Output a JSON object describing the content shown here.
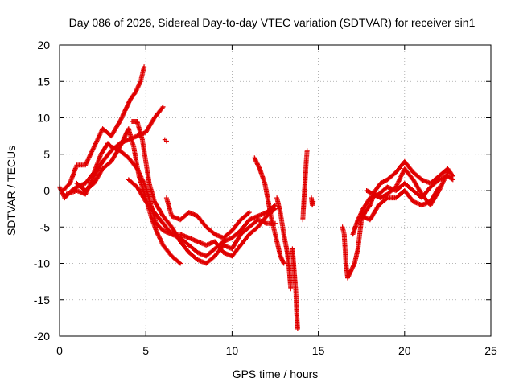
{
  "chart_data": {
    "type": "scatter",
    "title": "Day 086 of 2026, Sidereal Day-to-day VTEC variation (SDTVAR) for receiver sin1",
    "xlabel": "GPS time / hours",
    "ylabel": "SDTVAR / TECUs",
    "xlim": [
      0,
      25
    ],
    "ylim": [
      -20,
      20
    ],
    "xticks": [
      0,
      5,
      10,
      15,
      20,
      25
    ],
    "yticks": [
      -20,
      -15,
      -10,
      -5,
      0,
      5,
      10,
      15,
      20
    ],
    "grid": true,
    "marker": "plus",
    "color": "#e00000",
    "series": [
      {
        "name": "track-1",
        "points": [
          [
            0.0,
            0.5
          ],
          [
            0.3,
            -1.0
          ],
          [
            0.7,
            0.0
          ],
          [
            1.0,
            0.5
          ],
          [
            1.5,
            1.0
          ],
          [
            2.0,
            2.5
          ],
          [
            2.4,
            5.0
          ],
          [
            2.8,
            6.5
          ],
          [
            3.0,
            6.0
          ],
          [
            3.5,
            5.5
          ],
          [
            4.0,
            4.5
          ],
          [
            4.5,
            3.0
          ],
          [
            5.0,
            0.5
          ],
          [
            5.3,
            -2.0
          ],
          [
            5.6,
            -4.5
          ],
          [
            6.0,
            -5.5
          ],
          [
            6.5,
            -6.0
          ],
          [
            7.0,
            -6.5
          ],
          [
            7.5,
            -7.5
          ],
          [
            8.0,
            -8.5
          ],
          [
            8.5,
            -9.0
          ],
          [
            9.0,
            -8.0
          ],
          [
            9.5,
            -7.0
          ],
          [
            10.0,
            -6.5
          ],
          [
            10.5,
            -5.5
          ],
          [
            11.0,
            -4.0
          ],
          [
            11.5,
            -3.5
          ],
          [
            12.0,
            -3.0
          ],
          [
            12.5,
            -2.0
          ]
        ]
      },
      {
        "name": "track-2",
        "points": [
          [
            0.2,
            0.0
          ],
          [
            0.6,
            1.0
          ],
          [
            1.0,
            3.5
          ],
          [
            1.5,
            3.5
          ],
          [
            2.0,
            6.0
          ],
          [
            2.5,
            8.5
          ],
          [
            3.0,
            7.5
          ],
          [
            3.5,
            9.5
          ],
          [
            3.8,
            11.0
          ],
          [
            4.1,
            12.5
          ],
          [
            4.4,
            13.5
          ],
          [
            4.7,
            15.0
          ],
          [
            4.9,
            17.0
          ]
        ]
      },
      {
        "name": "track-3",
        "points": [
          [
            0.4,
            -0.5
          ],
          [
            1.0,
            0.0
          ],
          [
            1.5,
            -0.5
          ],
          [
            2.0,
            2.0
          ],
          [
            2.5,
            4.0
          ],
          [
            3.0,
            5.5
          ],
          [
            3.5,
            6.5
          ],
          [
            4.0,
            7.0
          ],
          [
            4.5,
            7.5
          ],
          [
            5.0,
            8.0
          ],
          [
            5.5,
            10.0
          ],
          [
            6.0,
            11.5
          ]
        ]
      },
      {
        "name": "track-4",
        "points": [
          [
            1.0,
            1.0
          ],
          [
            1.5,
            0.0
          ],
          [
            2.0,
            1.0
          ],
          [
            2.5,
            3.0
          ],
          [
            3.0,
            4.0
          ],
          [
            3.5,
            6.0
          ],
          [
            3.8,
            7.5
          ],
          [
            4.0,
            8.5
          ],
          [
            4.3,
            6.0
          ],
          [
            4.6,
            2.0
          ],
          [
            5.0,
            -1.0
          ],
          [
            5.3,
            -3.5
          ],
          [
            5.6,
            -5.5
          ],
          [
            6.0,
            -7.5
          ],
          [
            6.5,
            -9.0
          ],
          [
            7.0,
            -10.0
          ]
        ]
      },
      {
        "name": "track-5",
        "points": [
          [
            4.2,
            9.5
          ],
          [
            4.5,
            9.5
          ],
          [
            4.8,
            7.0
          ],
          [
            5.0,
            4.0
          ],
          [
            5.2,
            1.0
          ],
          [
            5.5,
            -1.5
          ],
          [
            6.0,
            -3.5
          ],
          [
            6.5,
            -5.0
          ],
          [
            7.0,
            -7.0
          ],
          [
            7.5,
            -8.5
          ],
          [
            8.0,
            -9.5
          ],
          [
            8.5,
            -10.0
          ],
          [
            9.0,
            -9.0
          ],
          [
            9.5,
            -7.5
          ],
          [
            10.0,
            -8.0
          ],
          [
            10.5,
            -6.0
          ],
          [
            11.0,
            -5.0
          ],
          [
            11.5,
            -4.0
          ],
          [
            12.0,
            -4.5
          ],
          [
            12.5,
            -4.5
          ]
        ]
      },
      {
        "name": "track-6",
        "points": [
          [
            4.0,
            1.5
          ],
          [
            4.5,
            0.5
          ],
          [
            5.0,
            -1.5
          ],
          [
            5.5,
            -3.0
          ],
          [
            6.0,
            -4.5
          ],
          [
            6.5,
            -6.0
          ],
          [
            7.0,
            -6.0
          ],
          [
            7.5,
            -6.5
          ],
          [
            8.0,
            -7.0
          ],
          [
            8.5,
            -7.5
          ],
          [
            9.0,
            -7.0
          ],
          [
            9.5,
            -8.5
          ],
          [
            10.0,
            -9.0
          ],
          [
            10.5,
            -7.5
          ],
          [
            11.0,
            -6.0
          ],
          [
            11.5,
            -5.0
          ],
          [
            12.0,
            -3.5
          ],
          [
            12.5,
            -2.5
          ]
        ]
      },
      {
        "name": "track-7",
        "points": [
          [
            6.2,
            -1.0
          ],
          [
            6.5,
            -3.5
          ],
          [
            7.0,
            -4.0
          ],
          [
            7.5,
            -3.0
          ],
          [
            8.0,
            -3.5
          ],
          [
            8.5,
            -5.0
          ],
          [
            9.0,
            -6.0
          ],
          [
            9.5,
            -6.5
          ],
          [
            10.0,
            -5.5
          ],
          [
            10.5,
            -4.0
          ],
          [
            11.0,
            -3.0
          ]
        ]
      },
      {
        "name": "track-8",
        "points": [
          [
            11.3,
            4.5
          ],
          [
            11.6,
            3.0
          ],
          [
            11.9,
            1.0
          ],
          [
            12.1,
            -1.5
          ],
          [
            12.3,
            -4.0
          ],
          [
            12.6,
            -7.0
          ],
          [
            12.8,
            -9.0
          ],
          [
            13.0,
            -10.0
          ]
        ]
      },
      {
        "name": "track-9",
        "points": [
          [
            12.6,
            -1.0
          ],
          [
            12.8,
            -3.0
          ],
          [
            13.0,
            -6.0
          ],
          [
            13.2,
            -8.5
          ],
          [
            13.3,
            -10.5
          ],
          [
            13.4,
            -13.5
          ]
        ]
      },
      {
        "name": "track-10",
        "points": [
          [
            13.5,
            -8.0
          ],
          [
            13.6,
            -11.0
          ],
          [
            13.7,
            -14.0
          ],
          [
            13.75,
            -17.0
          ],
          [
            13.8,
            -19.0
          ]
        ]
      },
      {
        "name": "track-11",
        "points": [
          [
            14.1,
            -4.0
          ],
          [
            14.15,
            -2.0
          ],
          [
            14.2,
            0.0
          ],
          [
            14.25,
            2.0
          ],
          [
            14.3,
            4.0
          ],
          [
            14.35,
            5.5
          ]
        ]
      },
      {
        "name": "track-12",
        "points": [
          [
            14.6,
            -1.0
          ],
          [
            14.65,
            -2.0
          ],
          [
            14.7,
            -1.5
          ]
        ]
      },
      {
        "name": "track-13",
        "points": [
          [
            16.4,
            -5.0
          ],
          [
            16.5,
            -6.0
          ],
          [
            16.6,
            -10.0
          ],
          [
            16.7,
            -12.0
          ],
          [
            16.9,
            -11.0
          ],
          [
            17.1,
            -10.0
          ],
          [
            17.3,
            -8.0
          ],
          [
            17.5,
            -4.0
          ],
          [
            17.7,
            -3.0
          ],
          [
            18.0,
            -2.0
          ],
          [
            18.3,
            0.0
          ],
          [
            18.6,
            1.0
          ],
          [
            19.0,
            1.5
          ],
          [
            19.5,
            2.5
          ],
          [
            20.0,
            4.0
          ],
          [
            20.5,
            2.5
          ],
          [
            21.0,
            1.5
          ],
          [
            21.5,
            1.0
          ],
          [
            22.0,
            2.0
          ],
          [
            22.5,
            3.0
          ],
          [
            22.8,
            2.0
          ]
        ]
      },
      {
        "name": "track-14",
        "points": [
          [
            17.0,
            -6.0
          ],
          [
            17.3,
            -4.0
          ],
          [
            17.6,
            -2.5
          ],
          [
            18.0,
            -1.0
          ],
          [
            18.5,
            -0.5
          ],
          [
            19.0,
            0.5
          ],
          [
            19.5,
            0.0
          ],
          [
            20.0,
            1.0
          ],
          [
            20.5,
            0.0
          ],
          [
            21.0,
            -1.0
          ],
          [
            21.5,
            0.5
          ],
          [
            22.0,
            1.5
          ],
          [
            22.5,
            2.0
          ],
          [
            22.8,
            1.5
          ]
        ]
      },
      {
        "name": "track-15",
        "points": [
          [
            17.8,
            0.0
          ],
          [
            18.2,
            -0.5
          ],
          [
            18.6,
            -1.0
          ],
          [
            19.0,
            -0.5
          ],
          [
            19.5,
            0.5
          ],
          [
            20.0,
            3.0
          ],
          [
            20.5,
            1.5
          ],
          [
            21.0,
            -0.5
          ],
          [
            21.5,
            -2.0
          ],
          [
            22.0,
            0.0
          ],
          [
            22.5,
            2.5
          ]
        ]
      },
      {
        "name": "track-16",
        "points": [
          [
            17.5,
            -3.5
          ],
          [
            18.0,
            -4.0
          ],
          [
            18.5,
            -2.0
          ],
          [
            19.0,
            -1.0
          ],
          [
            19.5,
            -1.0
          ],
          [
            20.0,
            0.0
          ],
          [
            20.5,
            -1.5
          ],
          [
            21.0,
            -2.0
          ],
          [
            21.5,
            -1.5
          ],
          [
            22.0,
            0.5
          ]
        ]
      }
    ],
    "isolated_points": [
      [
        6.1,
        7.0
      ],
      [
        6.2,
        6.8
      ]
    ]
  }
}
